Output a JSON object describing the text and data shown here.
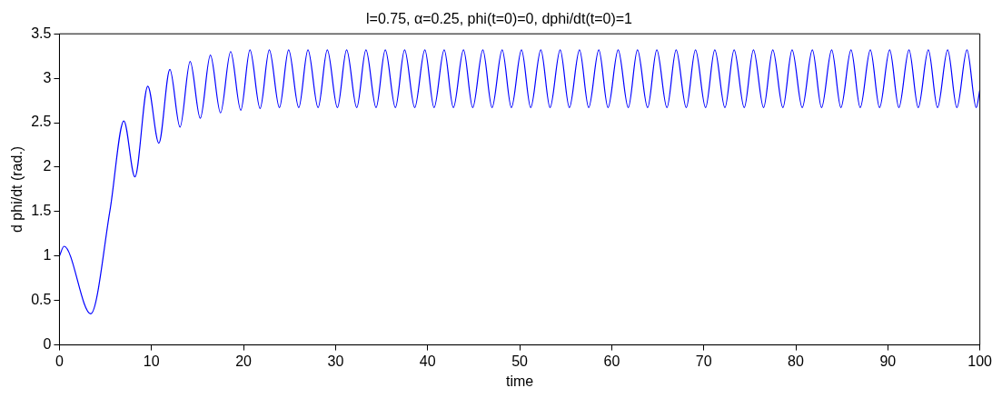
{
  "chart_data": {
    "type": "line",
    "title": "l=0.75, α=0.25, phi(t=0)=0, dphi/dt(t=0)=1",
    "xlabel": "time",
    "ylabel": "d phi/dt (rad.)",
    "xlim": [
      0,
      100
    ],
    "xticks": [
      0,
      10,
      20,
      30,
      40,
      50,
      60,
      70,
      80,
      90,
      100
    ],
    "ylim": [
      0,
      3.5
    ],
    "yticks": [
      0,
      0.5,
      1,
      1.5,
      2,
      2.5,
      3,
      3.5
    ],
    "grid": false,
    "legend": false,
    "marker": "none",
    "line_style": "solid",
    "series": [
      {
        "color": "#0000ff",
        "x": [
          0,
          0.5,
          3.4,
          5.5,
          7.0,
          8.2,
          9.6,
          10.8,
          12.0,
          13.1,
          14.2,
          15.3,
          16.4,
          17.5,
          18.6,
          19.7,
          20.7,
          21.8,
          22.8,
          23.9,
          24.9,
          26.0,
          27.0,
          28.1,
          29.1,
          30.2,
          31.2,
          32.3,
          33.3,
          34.4,
          35.4,
          36.5,
          37.5,
          38.6,
          39.7,
          40.7,
          41.8,
          42.8,
          43.9,
          44.9,
          46.0,
          47.0,
          48.1,
          49.1,
          50.2,
          51.2,
          52.3,
          53.3,
          54.4,
          55.4,
          56.5,
          57.5,
          58.6,
          59.6,
          60.7,
          61.8,
          62.8,
          63.9,
          64.9,
          66.0,
          67.0,
          68.1,
          69.1,
          70.2,
          71.2,
          72.3,
          73.3,
          74.4,
          75.4,
          76.5,
          77.5,
          78.6,
          79.6,
          80.7,
          81.8,
          82.8,
          83.9,
          84.9,
          86.0,
          87.0,
          88.1,
          89.1,
          90.2,
          91.2,
          92.3,
          93.3,
          94.4,
          95.4,
          96.5,
          97.5,
          98.6,
          99.6,
          100
        ],
        "values": [
          1.0,
          1.11,
          0.35,
          1.52,
          2.52,
          1.89,
          2.91,
          2.27,
          3.1,
          2.45,
          3.19,
          2.55,
          3.26,
          2.61,
          3.3,
          2.64,
          3.32,
          2.66,
          3.32,
          2.67,
          3.32,
          2.67,
          3.32,
          2.67,
          3.32,
          2.67,
          3.32,
          2.67,
          3.32,
          2.67,
          3.32,
          2.67,
          3.32,
          2.67,
          3.32,
          2.67,
          3.32,
          2.67,
          3.32,
          2.67,
          3.32,
          2.67,
          3.32,
          2.67,
          3.32,
          2.67,
          3.32,
          2.67,
          3.32,
          2.67,
          3.32,
          2.67,
          3.32,
          2.67,
          3.32,
          2.67,
          3.32,
          2.67,
          3.32,
          2.67,
          3.32,
          2.67,
          3.32,
          2.67,
          3.32,
          2.67,
          3.32,
          2.67,
          3.32,
          2.67,
          3.32,
          2.67,
          3.32,
          2.67,
          3.32,
          2.67,
          3.32,
          2.67,
          3.32,
          2.67,
          3.32,
          2.67,
          3.32,
          2.67,
          3.32,
          2.67,
          3.32,
          2.67,
          3.32,
          2.67,
          3.32,
          2.67,
          2.87
        ]
      }
    ]
  }
}
